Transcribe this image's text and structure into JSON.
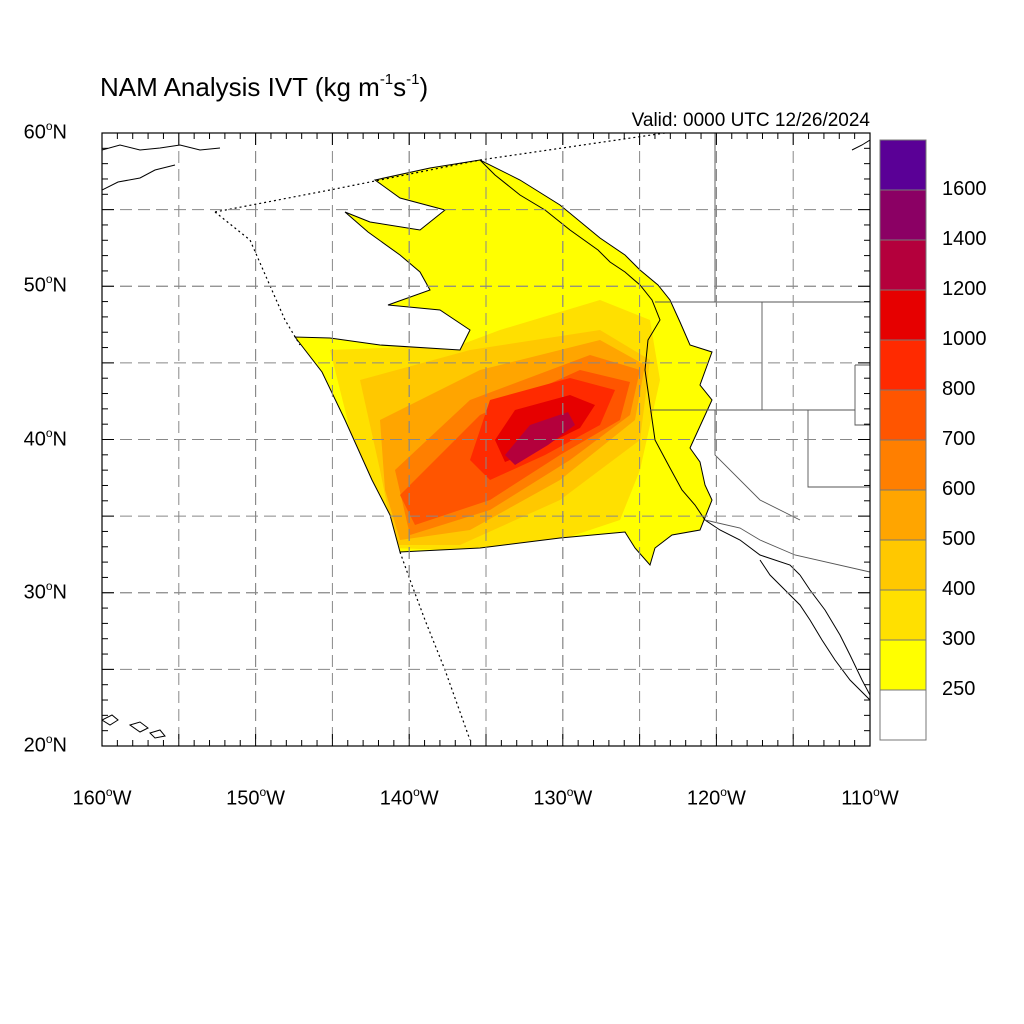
{
  "title": {
    "main": "NAM Analysis IVT (kg m",
    "exp1": "-1",
    "mid": "s",
    "exp2": "-1",
    "close": ")"
  },
  "valid_label": "Valid: 0000 UTC 12/26/2024",
  "lat_labels": [
    {
      "value": 60,
      "num": "60",
      "deg": "o",
      "hemi": "N"
    },
    {
      "value": 50,
      "num": "50",
      "deg": "o",
      "hemi": "N"
    },
    {
      "value": 40,
      "num": "40",
      "deg": "o",
      "hemi": "N"
    },
    {
      "value": 30,
      "num": "30",
      "deg": "o",
      "hemi": "N"
    },
    {
      "value": 20,
      "num": "20",
      "deg": "o",
      "hemi": "N"
    }
  ],
  "lon_labels": [
    {
      "value": -160,
      "num": "160",
      "deg": "o",
      "hemi": "W"
    },
    {
      "value": -150,
      "num": "150",
      "deg": "o",
      "hemi": "W"
    },
    {
      "value": -140,
      "num": "140",
      "deg": "o",
      "hemi": "W"
    },
    {
      "value": -130,
      "num": "130",
      "deg": "o",
      "hemi": "W"
    },
    {
      "value": -120,
      "num": "120",
      "deg": "o",
      "hemi": "W"
    },
    {
      "value": -110,
      "num": "110",
      "deg": "o",
      "hemi": "W"
    }
  ],
  "colorbar": {
    "levels": [
      "250",
      "300",
      "400",
      "500",
      "600",
      "700",
      "800",
      "1000",
      "1200",
      "1400",
      "1600"
    ],
    "colors": [
      "#ffffff",
      "#ffff00",
      "#ffe000",
      "#ffc800",
      "#ffa500",
      "#ff7f00",
      "#ff5500",
      "#ff2a00",
      "#e60000",
      "#b4003c",
      "#8b0064",
      "#5a0096"
    ]
  },
  "map_data": {
    "extent": {
      "lon": [
        -160,
        -110
      ],
      "lat": [
        20,
        60
      ]
    },
    "grid_lon": [
      -155,
      -150,
      -145,
      -140,
      -135,
      -130,
      -125,
      -120,
      -115
    ],
    "grid_lat": [
      25,
      30,
      35,
      40,
      45,
      50,
      55
    ]
  },
  "colors": {
    "land_line": "#000000",
    "grid": "#888888",
    "state_line": "#666666"
  }
}
